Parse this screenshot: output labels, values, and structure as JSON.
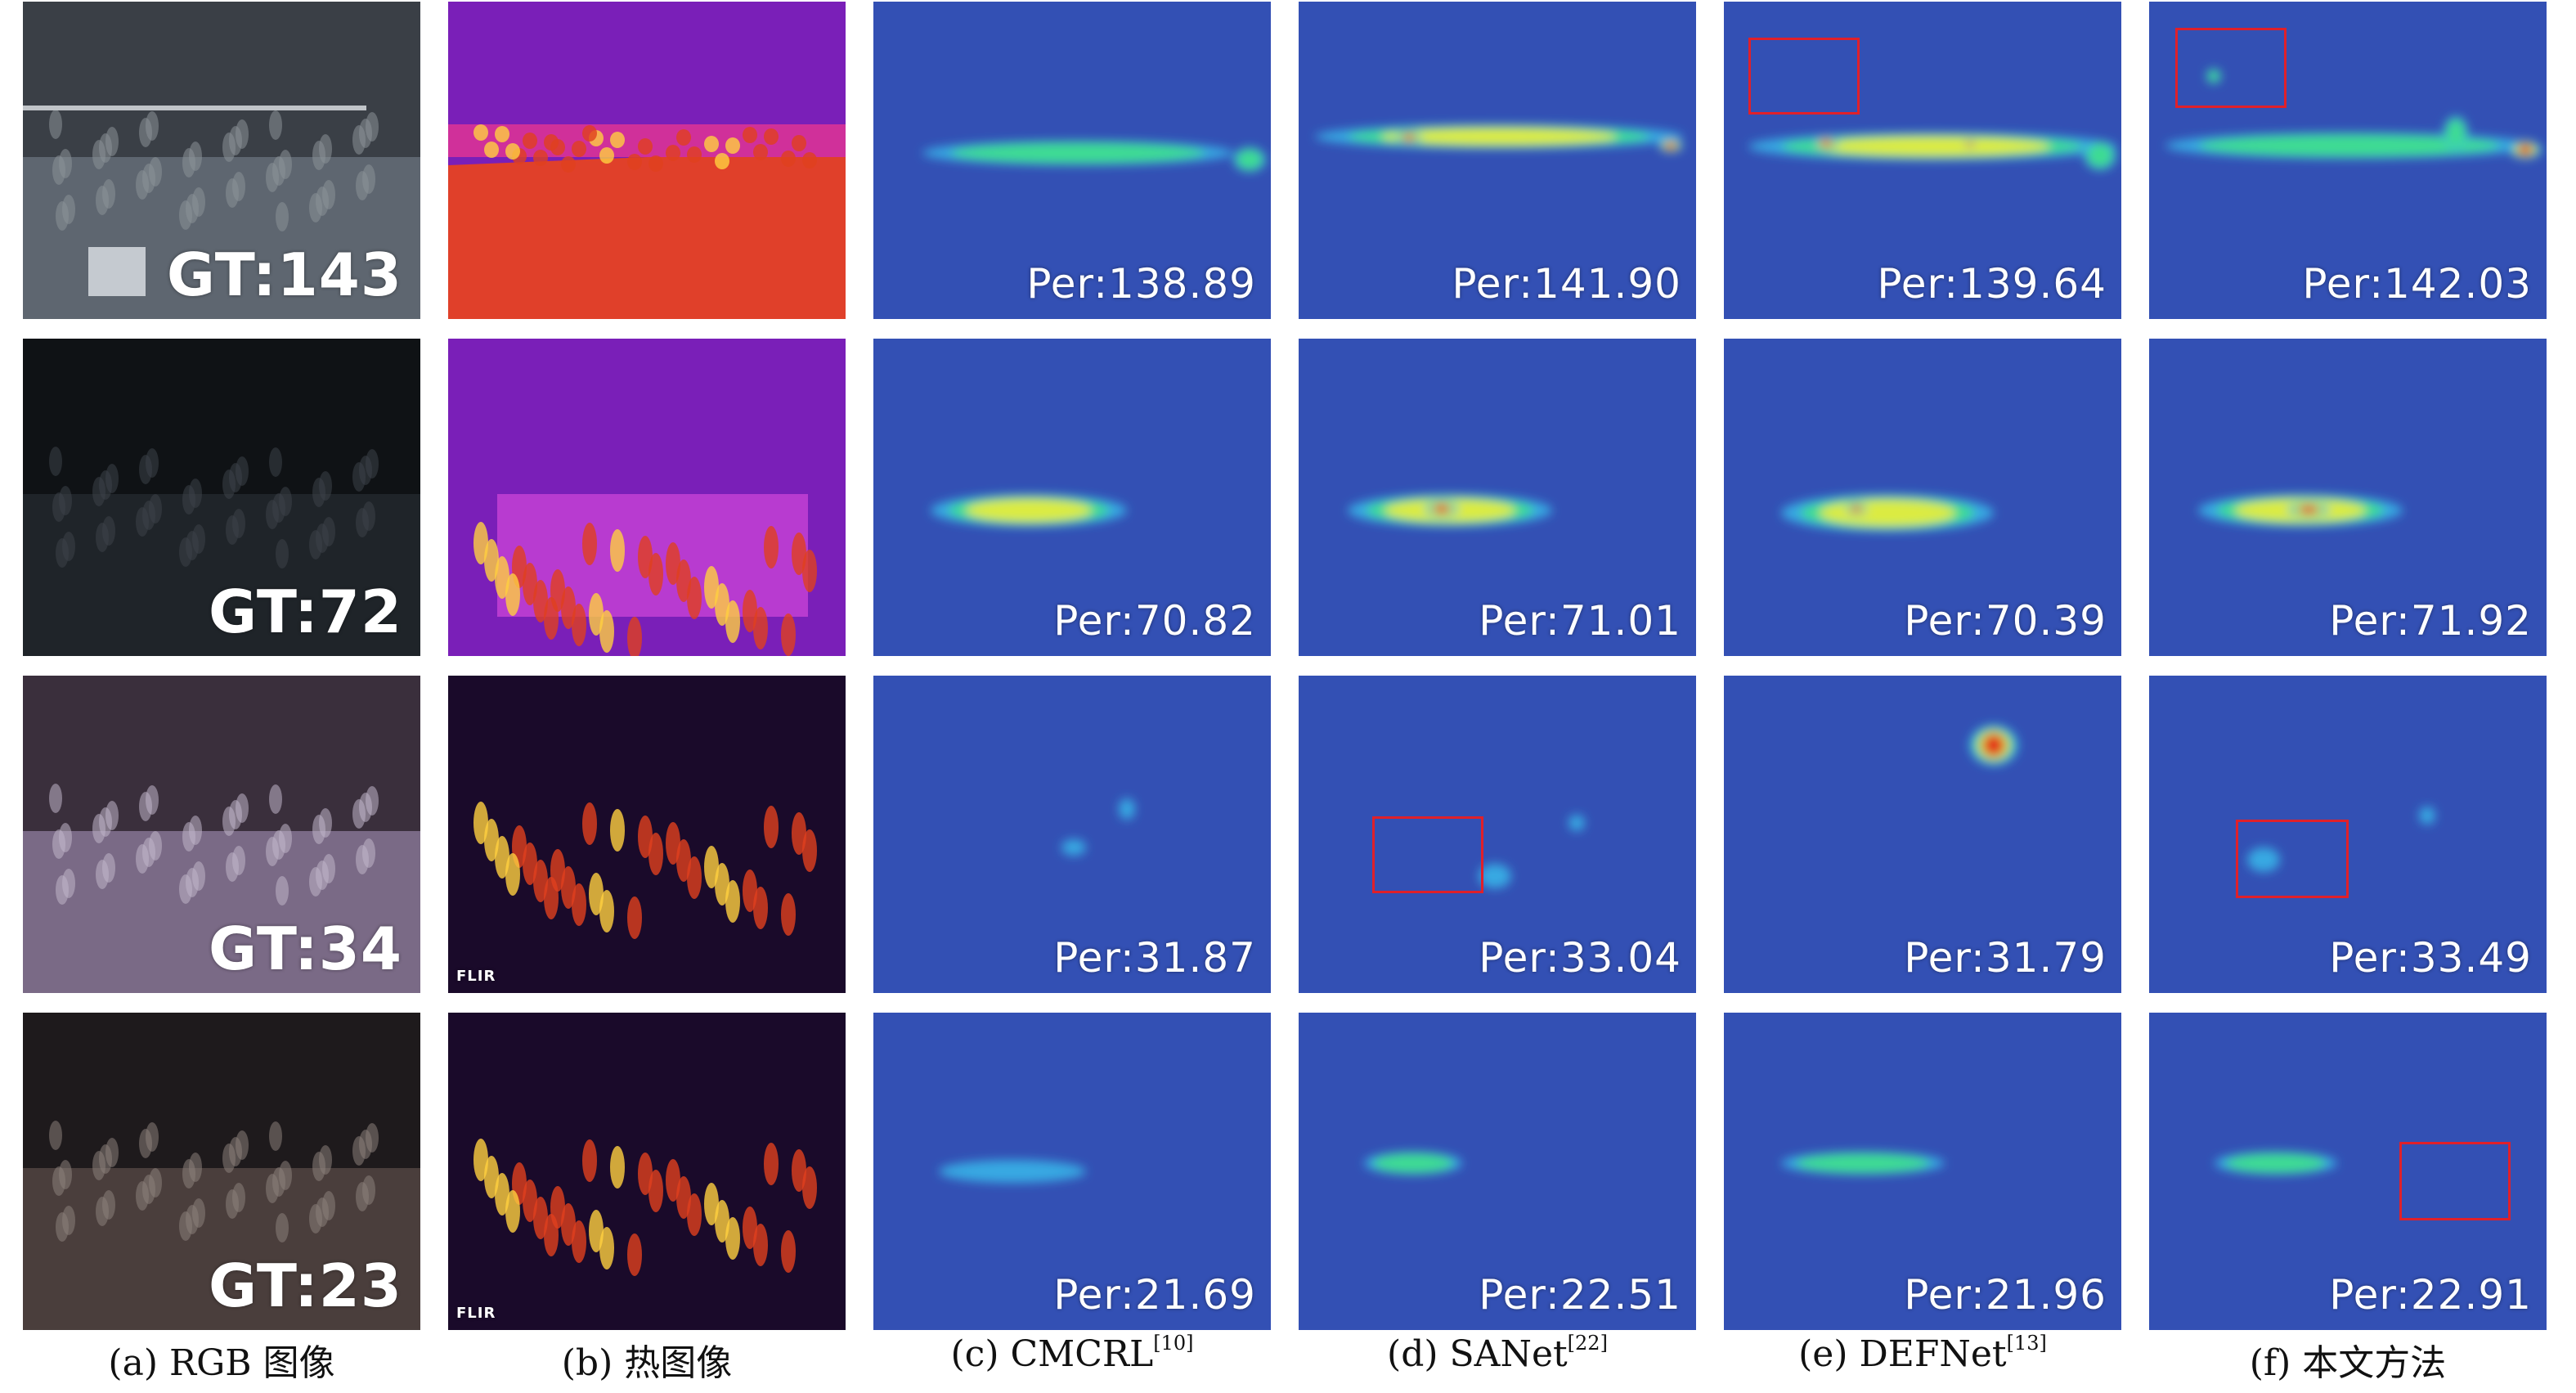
{
  "row_labels": {
    "gt": [
      "GT:143",
      "GT:72",
      "GT:34",
      "GT:23"
    ],
    "thermal_logo": [
      "",
      "",
      "FLIR",
      "FLIR"
    ]
  },
  "columns": [
    {
      "key": "cmcrl",
      "values": [
        "Per:138.89",
        "Per:70.82",
        "Per:31.87",
        "Per:21.69"
      ]
    },
    {
      "key": "sanet",
      "values": [
        "Per:141.90",
        "Per:71.01",
        "Per:33.04",
        "Per:22.51"
      ]
    },
    {
      "key": "defnet",
      "values": [
        "Per:139.64",
        "Per:70.39",
        "Per:31.79",
        "Per:21.96"
      ]
    },
    {
      "key": "ours",
      "values": [
        "Per:142.03",
        "Per:71.92",
        "Per:33.49",
        "Per:22.91"
      ]
    }
  ],
  "captions": {
    "a": "(a) RGB 图像",
    "b": "(b) 热图像",
    "c_main": "(c) CMCRL",
    "c_ref": "[10]",
    "d_main": "(d) SANet",
    "d_ref": "[22]",
    "e_main": "(e) DEFNet",
    "e_ref": "[13]",
    "f": "(f) 本文方法"
  },
  "colors": {
    "density_background": "#3350b4",
    "highlight_box": "#e0202a",
    "thermal_hot": "#ffd040",
    "thermal_cold": "#1a0a2a"
  }
}
